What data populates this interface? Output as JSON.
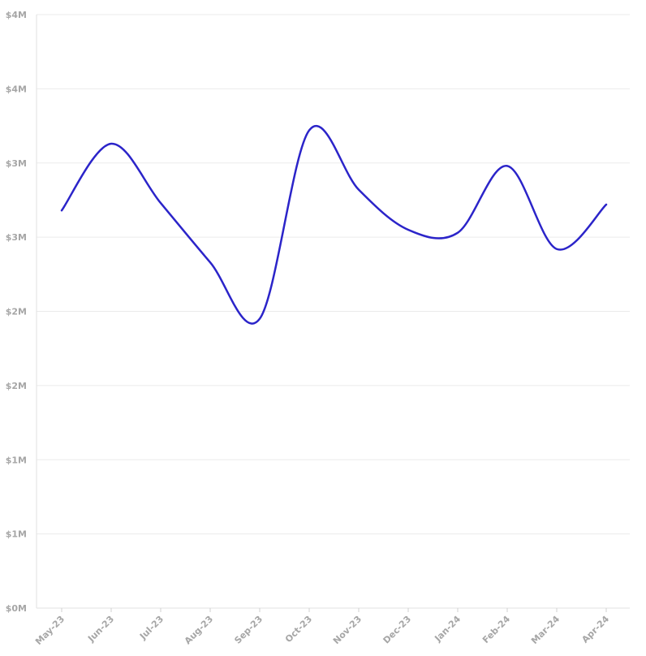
{
  "chart_data": {
    "type": "line",
    "title": "",
    "xlabel": "",
    "ylabel": "",
    "categories": [
      "May-23",
      "Jun-23",
      "Jul-23",
      "Aug-23",
      "Sep-23",
      "Oct-23",
      "Nov-23",
      "Dec-23",
      "Jan-24",
      "Feb-24",
      "Mar-24",
      "Apr-24"
    ],
    "series": [
      {
        "values": [
          2.68,
          3.13,
          2.73,
          2.33,
          1.95,
          3.22,
          2.82,
          2.55,
          2.53,
          2.98,
          2.42,
          2.72
        ]
      }
    ],
    "ylim": [
      0,
      4
    ],
    "y_ticks": [
      0,
      0.5,
      1,
      1.5,
      2,
      2.5,
      3,
      3.5,
      4
    ],
    "y_tick_labels": [
      "$0M",
      "$1M",
      "$1M",
      "$2M",
      "$2M",
      "$3M",
      "$3M",
      "$4M",
      "$4M"
    ],
    "grid": true,
    "legend": "none",
    "colors": {
      "line": "#2b24c9",
      "grid": "#ebebeb",
      "tick_text": "#a6a6a6"
    }
  }
}
